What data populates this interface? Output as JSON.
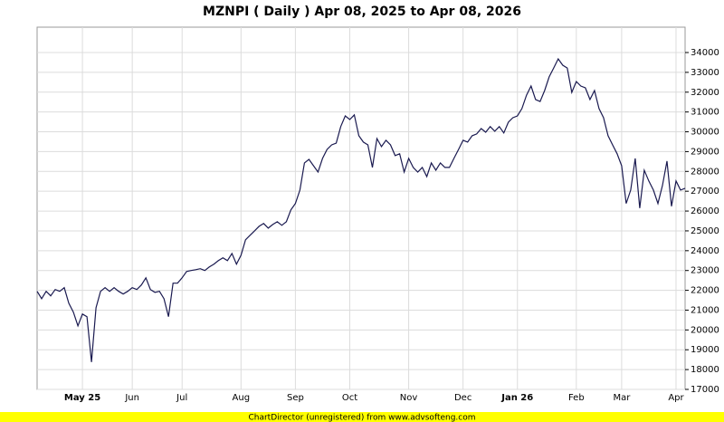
{
  "chart_data": {
    "type": "line",
    "title": "MZNPI ( Daily ) Apr 08, 2025 to Apr 08, 2026",
    "footer": "ChartDirector (unregistered) from www.advsofteng.com",
    "categories": [
      null,
      null,
      null,
      null,
      null,
      null,
      null,
      null,
      null,
      null,
      "May 25",
      null,
      null,
      null,
      null,
      null,
      null,
      null,
      null,
      null,
      null,
      "Jun",
      null,
      null,
      null,
      null,
      null,
      null,
      null,
      null,
      null,
      null,
      "Jul",
      null,
      null,
      null,
      null,
      null,
      null,
      null,
      null,
      null,
      null,
      null,
      null,
      "Aug",
      null,
      null,
      null,
      null,
      null,
      null,
      null,
      null,
      null,
      null,
      null,
      "Sep",
      null,
      null,
      null,
      null,
      null,
      null,
      null,
      null,
      null,
      null,
      null,
      "Oct",
      null,
      null,
      null,
      null,
      null,
      null,
      null,
      null,
      null,
      null,
      null,
      null,
      "Nov",
      null,
      null,
      null,
      null,
      null,
      null,
      null,
      null,
      null,
      null,
      null,
      "Dec",
      null,
      null,
      null,
      null,
      null,
      null,
      null,
      null,
      null,
      null,
      null,
      "Jan 26",
      null,
      null,
      null,
      null,
      null,
      null,
      null,
      null,
      null,
      null,
      null,
      null,
      "Feb",
      null,
      null,
      null,
      null,
      null,
      null,
      null,
      null,
      null,
      "Mar",
      null,
      null,
      null,
      null,
      null,
      null,
      null,
      null,
      null,
      null,
      null,
      "Apr",
      null,
      null
    ],
    "series": [
      {
        "color": "#1a1a50",
        "values": [
          21950,
          21580,
          21950,
          21720,
          22040,
          21950,
          22130,
          21350,
          20900,
          20210,
          20800,
          20670,
          18380,
          21120,
          21950,
          22130,
          21950,
          22130,
          21950,
          21810,
          21950,
          22130,
          22040,
          22270,
          22630,
          22040,
          21900,
          21950,
          21580,
          20670,
          22360,
          22360,
          22630,
          22950,
          23000,
          23040,
          23090,
          23000,
          23180,
          23320,
          23500,
          23640,
          23500,
          23860,
          23320,
          23770,
          24550,
          24780,
          25000,
          25230,
          25370,
          25140,
          25320,
          25460,
          25280,
          25460,
          26060,
          26380,
          27060,
          28430,
          28610,
          28290,
          27970,
          28660,
          29110,
          29340,
          29430,
          30260,
          30800,
          30620,
          30850,
          29800,
          29480,
          29340,
          28200,
          29660,
          29250,
          29570,
          29340,
          28800,
          28890,
          27970,
          28660,
          28200,
          27970,
          28200,
          27740,
          28430,
          28060,
          28430,
          28200,
          28200,
          28660,
          29110,
          29570,
          29480,
          29800,
          29890,
          30160,
          29980,
          30260,
          30030,
          30260,
          29940,
          30480,
          30710,
          30800,
          31170,
          31850,
          32310,
          31630,
          31530,
          32080,
          32770,
          33220,
          33680,
          33360,
          33220,
          31990,
          32540,
          32310,
          32220,
          31630,
          32080,
          31170,
          30710,
          29800,
          29340,
          28890,
          28290,
          26380,
          27060,
          28660,
          26150,
          28060,
          27520,
          27060,
          26380,
          27290,
          28520,
          26240,
          27520,
          27060,
          27150
        ]
      }
    ],
    "ylim": [
      17000,
      35280
    ],
    "yticks": [
      17000,
      18000,
      19000,
      20000,
      21000,
      22000,
      23000,
      24000,
      25000,
      26000,
      27000,
      28000,
      29000,
      30000,
      31000,
      32000,
      33000,
      34000
    ],
    "grid": true
  }
}
